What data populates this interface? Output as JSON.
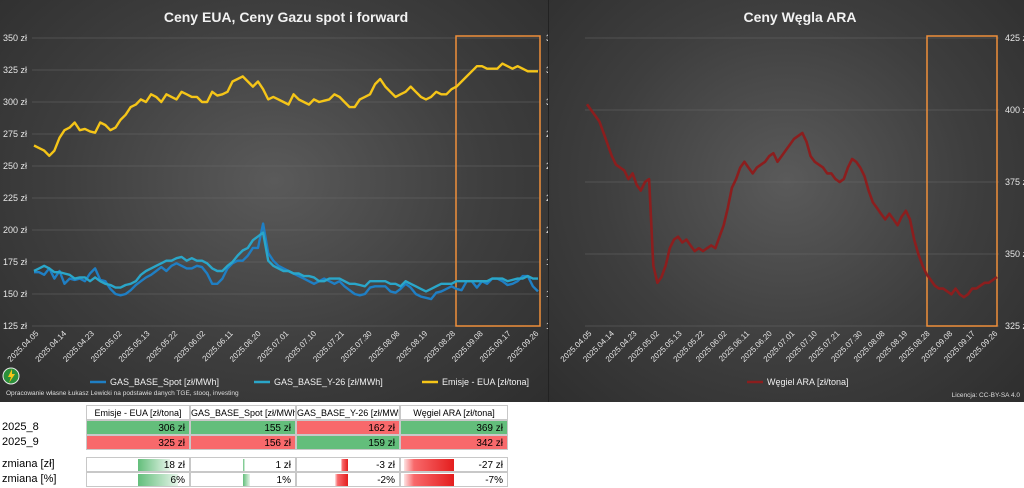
{
  "colors": {
    "eua": "#f5c518",
    "gas_spot": "#1f7fc4",
    "gas_y26": "#2aa6c9",
    "coal": "#8b1e1e",
    "highlight": "#ef8f3a",
    "green_cell": "#63be7b",
    "red_cell": "#f8696b"
  },
  "left_chart": {
    "title": "Ceny EUA, Ceny Gazu spot i forward",
    "left_axis_ticks": [
      "350 zł",
      "325 zł",
      "300 zł",
      "275 zł",
      "250 zł",
      "225 zł",
      "200 zł",
      "175 zł",
      "150 zł",
      "125 zł"
    ],
    "right_axis_ticks": [
      "350 zł",
      "325 zł",
      "300 zł",
      "275 zł",
      "250 zł",
      "225 zł",
      "200 zł",
      "175 zł",
      "150 zł",
      "125 zł"
    ],
    "x_ticks": [
      "2025.04.05",
      "2025.04.14",
      "2025.04.23",
      "2025.05.02",
      "2025.05.13",
      "2025.05.22",
      "2025.06.02",
      "2025.06.11",
      "2025.06.20",
      "2025.07.01",
      "2025.07.10",
      "2025.07.21",
      "2025.07.30",
      "2025.08.08",
      "2025.08.19",
      "2025.08.28",
      "2025.09.08",
      "2025.09.17",
      "2025.09.26"
    ],
    "legend": [
      "GAS_BASE_Spot [zł/MWh]",
      "GAS_BASE_Y-26 [zł/MWh]",
      "Emisje - EUA [zł/tona]"
    ],
    "footnote": "Opracowanie własne Łukasz Lewicki na podstawie danych TGE, stooq, investing"
  },
  "right_chart": {
    "title": "Ceny Węgla ARA",
    "right_axis_ticks": [
      "425 zł",
      "400 zł",
      "375 zł",
      "350 zł",
      "325 zł"
    ],
    "x_ticks": [
      "2025.04.05",
      "2025.04.14",
      "2025.04.23",
      "2025.05.02",
      "2025.05.13",
      "2025.05.22",
      "2025.06.02",
      "2025.06.11",
      "2025.06.20",
      "2025.07.01",
      "2025.07.10",
      "2025.07.21",
      "2025.07.30",
      "2025.08.08",
      "2025.08.19",
      "2025.08.28",
      "2025.09.08",
      "2025.09.17",
      "2025.09.26"
    ],
    "legend": [
      "Węgiel ARA [zł/tona]"
    ],
    "license": "Licencja: CC-BY-SA 4.0"
  },
  "chart_data": [
    {
      "type": "line",
      "title": "Ceny EUA, Ceny Gazu spot i forward",
      "ylim": [
        125,
        350
      ],
      "ylim_right": [
        125,
        350
      ],
      "x_range": [
        "2025.04.05",
        "2025.09.30"
      ],
      "series": [
        {
          "name": "Emisje - EUA [zł/tona]",
          "axis": "right",
          "values": [
            266,
            264,
            262,
            258,
            262,
            272,
            278,
            280,
            284,
            278,
            279,
            277,
            276,
            284,
            282,
            278,
            280,
            286,
            290,
            296,
            298,
            302,
            300,
            306,
            304,
            300,
            306,
            304,
            302,
            308,
            306,
            304,
            304,
            300,
            300,
            308,
            305,
            306,
            308,
            316,
            318,
            320,
            316,
            312,
            316,
            310,
            302,
            304,
            302,
            300,
            298,
            306,
            302,
            300,
            298,
            302,
            300,
            301,
            302,
            306,
            304,
            300,
            296,
            296,
            302,
            304,
            306,
            314,
            318,
            312,
            308,
            304,
            306,
            308,
            312,
            308,
            304,
            302,
            304,
            308,
            306,
            306,
            310,
            312,
            316,
            320,
            324,
            328,
            328,
            326,
            326,
            326,
            330,
            328,
            326,
            328,
            326,
            324,
            324,
            324
          ]
        },
        {
          "name": "GAS_BASE_Spot [zł/MWh]",
          "axis": "left",
          "values": [
            167,
            167,
            165,
            170,
            162,
            168,
            158,
            162,
            161,
            162,
            160,
            166,
            170,
            161,
            160,
            154,
            150,
            149,
            150,
            153,
            157,
            160,
            163,
            165,
            168,
            171,
            168,
            172,
            174,
            172,
            170,
            170,
            172,
            171,
            166,
            158,
            158,
            162,
            170,
            174,
            176,
            176,
            180,
            186,
            186,
            205,
            182,
            176,
            172,
            170,
            168,
            166,
            164,
            162,
            160,
            158,
            160,
            162,
            160,
            158,
            160,
            156,
            153,
            150,
            149,
            150,
            155,
            156,
            156,
            156,
            152,
            151,
            154,
            158,
            155,
            150,
            148,
            147,
            146,
            151,
            152,
            154,
            156,
            154,
            153,
            160,
            160,
            155,
            160,
            158,
            162,
            162,
            160,
            157,
            158,
            160,
            164,
            164,
            156,
            152
          ]
        },
        {
          "name": "GAS_BASE_Y-26 [zł/MWh]",
          "axis": "left",
          "values": [
            168,
            170,
            172,
            170,
            167,
            167,
            166,
            165,
            162,
            163,
            163,
            160,
            163,
            160,
            158,
            157,
            155,
            155,
            157,
            158,
            160,
            165,
            168,
            170,
            172,
            174,
            176,
            176,
            178,
            179,
            176,
            178,
            176,
            176,
            174,
            170,
            168,
            168,
            172,
            175,
            180,
            184,
            186,
            192,
            195,
            198,
            176,
            172,
            170,
            168,
            168,
            166,
            166,
            164,
            164,
            163,
            160,
            160,
            162,
            162,
            162,
            160,
            158,
            158,
            157,
            156,
            160,
            160,
            160,
            160,
            158,
            158,
            156,
            160,
            158,
            156,
            154,
            152,
            154,
            156,
            158,
            158,
            158,
            160,
            160,
            160,
            160,
            160,
            160,
            160,
            162,
            162,
            162,
            160,
            161,
            162,
            162,
            164,
            162,
            162
          ]
        }
      ]
    },
    {
      "type": "line",
      "title": "Ceny Węgla ARA",
      "ylim": [
        325,
        425
      ],
      "x_range": [
        "2025.04.05",
        "2025.09.30"
      ],
      "series": [
        {
          "name": "Węgiel ARA [zł/tona]",
          "axis": "right",
          "values": [
            402,
            400,
            398,
            396,
            392,
            388,
            384,
            381,
            380,
            379,
            376,
            378,
            374,
            372,
            375,
            376,
            346,
            340,
            342,
            346,
            352,
            355,
            356,
            354,
            355,
            353,
            351,
            352,
            351,
            352,
            353,
            352,
            356,
            360,
            366,
            373,
            376,
            380,
            382,
            380,
            378,
            380,
            381,
            382,
            384,
            385,
            382,
            384,
            386,
            388,
            390,
            391,
            392,
            389,
            384,
            382,
            381,
            380,
            378,
            378,
            376,
            375,
            376,
            380,
            383,
            382,
            380,
            377,
            372,
            368,
            366,
            364,
            362,
            364,
            362,
            360,
            363,
            365,
            362,
            355,
            350,
            346,
            343,
            341,
            339,
            338,
            338,
            337,
            336,
            338,
            336,
            335,
            336,
            338,
            338,
            339,
            340,
            340,
            341,
            342
          ]
        }
      ]
    }
  ],
  "table": {
    "headers": [
      "Emisje - EUA [zł/tona]",
      "GAS_BASE_Spot [zł/MWh]",
      "GAS_BASE_Y-26 [zł/MWh]",
      "Węgiel ARA [zł/tona]"
    ],
    "rows": [
      {
        "label": "2025_8",
        "values": [
          "306 zł",
          "155 zł",
          "162 zł",
          "369 zł"
        ],
        "colors": [
          "green",
          "green",
          "red",
          "green"
        ]
      },
      {
        "label": "2025_9",
        "values": [
          "325 zł",
          "156 zł",
          "159 zł",
          "342 zł"
        ],
        "colors": [
          "red",
          "red",
          "green",
          "red"
        ]
      },
      {
        "label": "zmiana [zł]",
        "values": [
          "18 zł",
          "1 zł",
          "-3 zł",
          "-27 zł"
        ],
        "bars": [
          0.33,
          0.02,
          -0.07,
          -0.5
        ]
      },
      {
        "label": "zmiana [%]",
        "values": [
          "6%",
          "1%",
          "-2%",
          "-7%"
        ],
        "bars": [
          0.42,
          0.07,
          -0.14,
          -0.5
        ]
      }
    ]
  }
}
